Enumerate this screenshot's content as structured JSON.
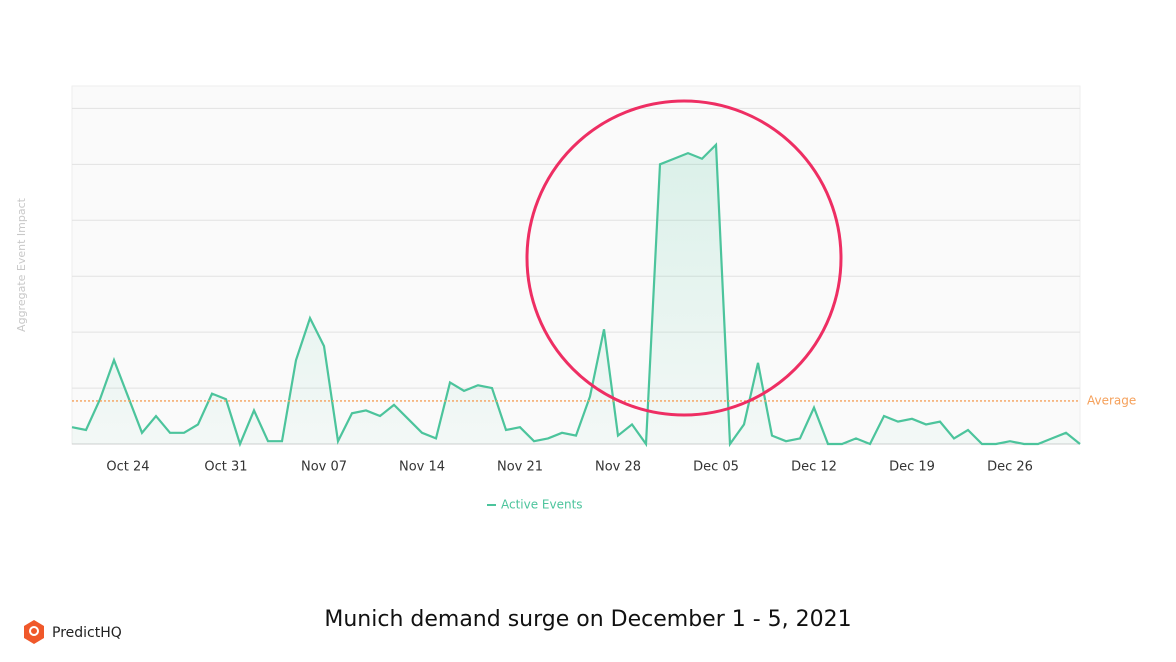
{
  "chart_data": {
    "type": "line",
    "caption": "Munich demand surge on December 1 - 5, 2021",
    "brand": "PredictHQ",
    "y_label": "Aggregate Event Impact",
    "categories": [
      null,
      null,
      null,
      null,
      "Oct 24",
      null,
      null,
      null,
      null,
      null,
      null,
      "Oct 31",
      null,
      null,
      null,
      null,
      null,
      null,
      "Nov 07",
      null,
      null,
      null,
      null,
      null,
      null,
      "Nov 14",
      null,
      null,
      null,
      null,
      null,
      null,
      "Nov 21",
      null,
      null,
      null,
      null,
      null,
      null,
      "Nov 28",
      null,
      null,
      null,
      null,
      null,
      null,
      "Dec 05",
      null,
      null,
      null,
      null,
      null,
      null,
      "Dec 12",
      null,
      null,
      null,
      null,
      null,
      null,
      "Dec 19",
      null,
      null,
      null,
      null,
      null,
      null,
      "Dec 26",
      null,
      null,
      null,
      null,
      null
    ],
    "series": [
      {
        "name": "Active Events",
        "color": "#4cc49c",
        "values": [
          0.3,
          0.25,
          0.8,
          1.5,
          0.85,
          0.2,
          0.5,
          0.2,
          0.2,
          0.35,
          0.9,
          0.8,
          0,
          0.6,
          0.05,
          0.05,
          1.5,
          2.25,
          1.75,
          0.05,
          0.55,
          0.6,
          0.5,
          0.7,
          0.45,
          0.2,
          0.1,
          1.1,
          0.95,
          1.05,
          1.0,
          0.25,
          0.3,
          0.05,
          0.1,
          0.2,
          0.15,
          0.85,
          2.05,
          0.15,
          0.35,
          0,
          5.0,
          5.1,
          5.2,
          5.1,
          5.35,
          0,
          0.35,
          1.45,
          0.15,
          0.05,
          0.1,
          0.65,
          0,
          0,
          0.1,
          0,
          0.5,
          0.4,
          0.45,
          0.35,
          0.4,
          0.1,
          0.25,
          0,
          0,
          0.05,
          0,
          0,
          0.1,
          0.2,
          0
        ]
      }
    ],
    "average": {
      "label": "Average",
      "value": 0.77,
      "color": "#f5a05a"
    },
    "ylim": [
      0,
      6.4
    ],
    "yticks": [
      0,
      1,
      2,
      3,
      4,
      5,
      6
    ],
    "grid": true
  }
}
